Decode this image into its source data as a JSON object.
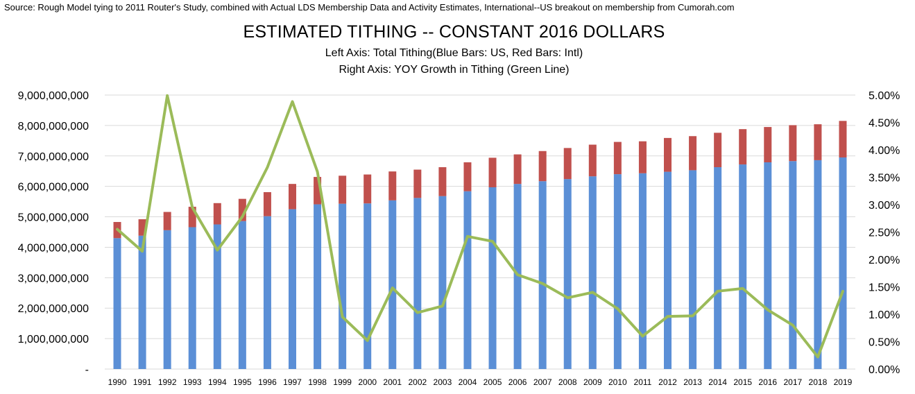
{
  "source_note": "Source: Rough Model tying to 2011 Router's Study, combined with Actual LDS Membership Data and Activity Estimates, International--US breakout on membership from Cumorah.com",
  "chart_data": {
    "type": "bar",
    "title": "ESTIMATED TITHING -- CONSTANT 2016 DOLLARS",
    "subtitle_1": "Left Axis: Total Tithing(Blue Bars: US, Red Bars: Intl)",
    "subtitle_2": "Right Axis: YOY Growth in Tithing (Green Line)",
    "stacked": true,
    "categories": [
      "1990",
      "1991",
      "1992",
      "1993",
      "1994",
      "1995",
      "1996",
      "1997",
      "1998",
      "1999",
      "2000",
      "2001",
      "2002",
      "2003",
      "2004",
      "2005",
      "2006",
      "2007",
      "2008",
      "2009",
      "2010",
      "2011",
      "2012",
      "2013",
      "2014",
      "2015",
      "2016",
      "2017",
      "2018",
      "2019"
    ],
    "series": [
      {
        "name": "US",
        "color": "#5b8fd6",
        "axis": "left",
        "values": [
          4300000000,
          4380000000,
          4560000000,
          4660000000,
          4750000000,
          4860000000,
          5020000000,
          5250000000,
          5410000000,
          5430000000,
          5440000000,
          5540000000,
          5620000000,
          5680000000,
          5840000000,
          5970000000,
          6080000000,
          6170000000,
          6240000000,
          6330000000,
          6400000000,
          6430000000,
          6480000000,
          6530000000,
          6630000000,
          6720000000,
          6790000000,
          6830000000,
          6860000000,
          6950000000
        ]
      },
      {
        "name": "Intl",
        "color": "#c0504d",
        "axis": "left",
        "values": [
          530000000,
          540000000,
          600000000,
          670000000,
          700000000,
          730000000,
          790000000,
          830000000,
          900000000,
          920000000,
          950000000,
          950000000,
          930000000,
          950000000,
          950000000,
          970000000,
          970000000,
          990000000,
          1020000000,
          1040000000,
          1060000000,
          1050000000,
          1110000000,
          1120000000,
          1130000000,
          1160000000,
          1160000000,
          1180000000,
          1180000000,
          1200000000
        ]
      },
      {
        "name": "YOY Growth",
        "type": "line",
        "color": "#9bbb59",
        "axis": "right",
        "values": [
          2.55,
          2.15,
          4.99,
          2.95,
          2.17,
          2.78,
          3.68,
          4.88,
          3.6,
          0.95,
          0.52,
          1.48,
          1.03,
          1.15,
          2.42,
          2.33,
          1.72,
          1.56,
          1.3,
          1.4,
          1.1,
          0.6,
          0.96,
          0.97,
          1.42,
          1.47,
          1.08,
          0.8,
          0.22,
          1.42
        ]
      }
    ],
    "y_left": {
      "min": 0,
      "max": 9000000000,
      "step": 1000000000,
      "tick_labels": [
        "-",
        "1,000,000,000",
        "2,000,000,000",
        "3,000,000,000",
        "4,000,000,000",
        "5,000,000,000",
        "6,000,000,000",
        "7,000,000,000",
        "8,000,000,000",
        "9,000,000,000"
      ]
    },
    "y_right": {
      "min": 0,
      "max": 5,
      "step": 0.5,
      "tick_labels": [
        "0.00%",
        "0.50%",
        "1.00%",
        "1.50%",
        "2.00%",
        "2.50%",
        "3.00%",
        "3.50%",
        "4.00%",
        "4.50%",
        "5.00%"
      ]
    },
    "grid": true,
    "legend": "none"
  }
}
